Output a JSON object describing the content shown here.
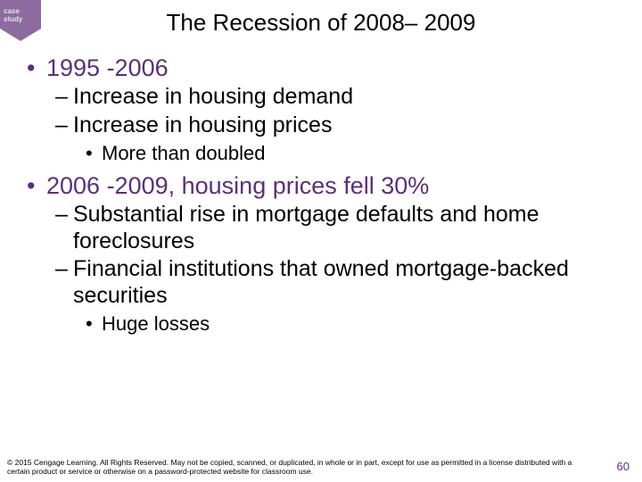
{
  "corner": {
    "line1": "case",
    "line2": "study"
  },
  "title": "The Recession of 2008– 2009",
  "bullets": [
    {
      "level": 1,
      "text": "1995 -2006"
    },
    {
      "level": 2,
      "text": "Increase in housing demand"
    },
    {
      "level": 2,
      "text": "Increase in housing prices"
    },
    {
      "level": 3,
      "text": "More than doubled"
    },
    {
      "level": 1,
      "text": "2006 -2009, housing prices fell 30%"
    },
    {
      "level": 2,
      "text": "Substantial rise in mortgage defaults and home foreclosures"
    },
    {
      "level": 2,
      "text": "Financial institutions that owned mortgage-backed securities"
    },
    {
      "level": 3,
      "text": "Huge losses"
    }
  ],
  "footer": "© 2015 Cengage Learning. All Rights Reserved. May not be copied, scanned, or duplicated, in whole or in part, except for use as permitted in a license distributed with a certain product or service or otherwise on a password-protected website for classroom use.",
  "page": "60"
}
